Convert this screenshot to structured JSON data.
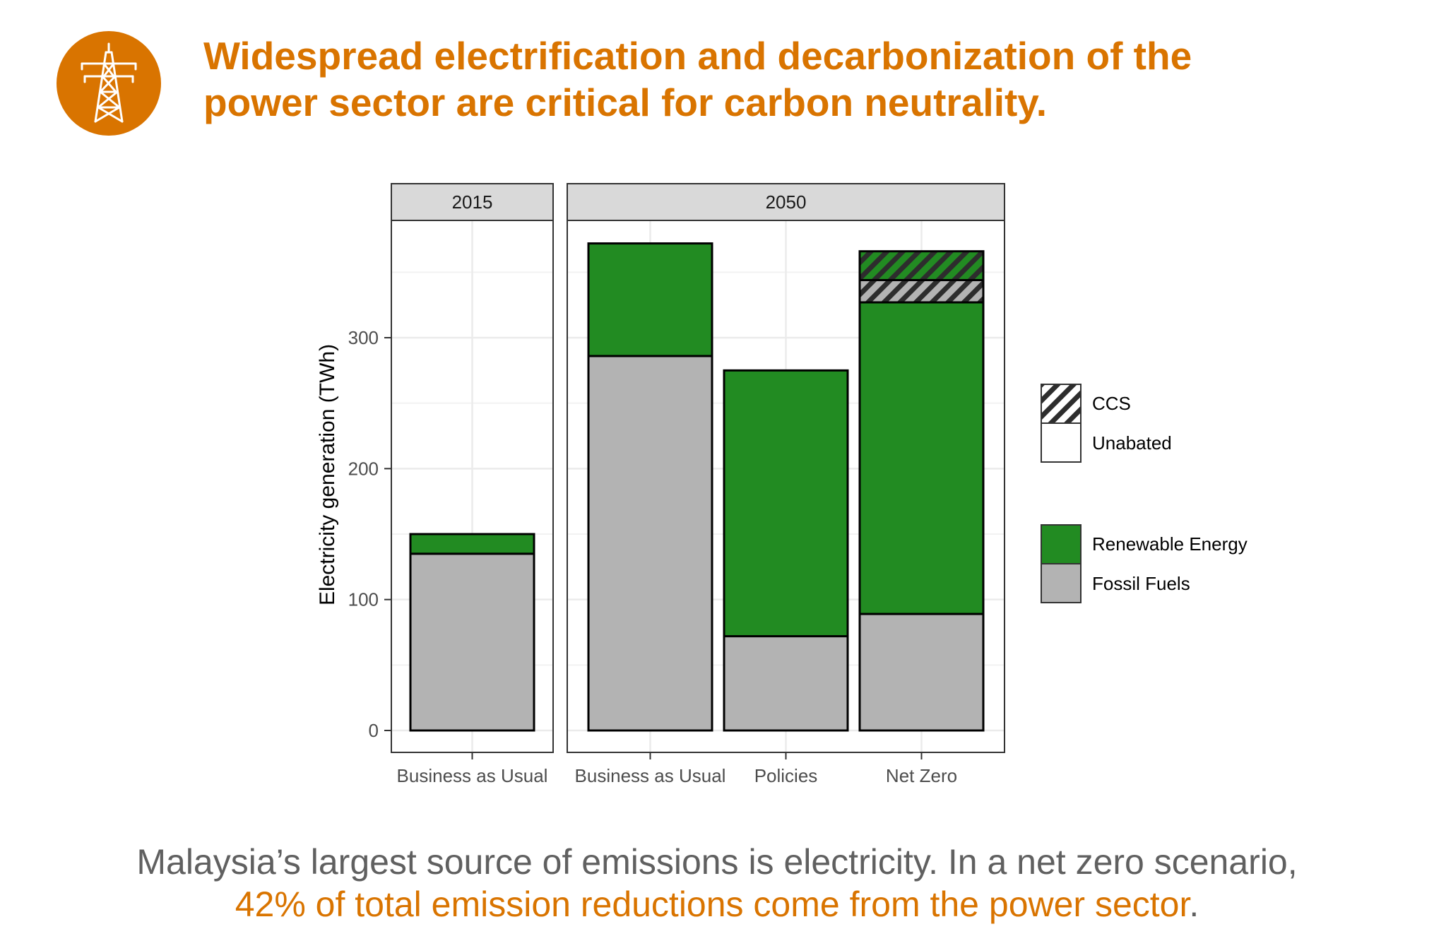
{
  "title": {
    "line1": "Widespread electrification and decarbonization of the",
    "line2": "power sector are critical for carbon neutrality."
  },
  "icon": "power-tower-icon",
  "colors": {
    "accent": "#D97400",
    "fossil": "#B3B3B3",
    "renewable": "#228B22",
    "caption_text": "#606060"
  },
  "caption": {
    "line1": "Malaysia’s largest source of emissions is electricity. In a net zero scenario,",
    "line2_highlight": "42% of total emission reductions come from the power sector",
    "line2_end": "."
  },
  "chart_data": {
    "type": "bar",
    "stacked": true,
    "ylabel": "Electricity generation (TWh)",
    "ylim": [
      0,
      390
    ],
    "yticks": [
      0,
      100,
      200,
      300
    ],
    "grid": true,
    "facets": [
      {
        "label": "2015",
        "categories": [
          "Business as Usual"
        ]
      },
      {
        "label": "2050",
        "categories": [
          "Business as Usual",
          "Policies",
          "Net Zero"
        ]
      }
    ],
    "bars": [
      {
        "facet": "2015",
        "category": "Business as Usual",
        "segments": [
          {
            "fill": "Fossil Fuels",
            "pattern": "Unabated",
            "value": 135
          },
          {
            "fill": "Renewable Energy",
            "pattern": "Unabated",
            "value": 15
          }
        ]
      },
      {
        "facet": "2050",
        "category": "Business as Usual",
        "segments": [
          {
            "fill": "Fossil Fuels",
            "pattern": "Unabated",
            "value": 286
          },
          {
            "fill": "Renewable Energy",
            "pattern": "Unabated",
            "value": 86
          }
        ]
      },
      {
        "facet": "2050",
        "category": "Policies",
        "segments": [
          {
            "fill": "Fossil Fuels",
            "pattern": "Unabated",
            "value": 72
          },
          {
            "fill": "Renewable Energy",
            "pattern": "Unabated",
            "value": 203
          }
        ]
      },
      {
        "facet": "2050",
        "category": "Net Zero",
        "segments": [
          {
            "fill": "Fossil Fuels",
            "pattern": "Unabated",
            "value": 89
          },
          {
            "fill": "Renewable Energy",
            "pattern": "Unabated",
            "value": 238
          },
          {
            "fill": "Fossil Fuels",
            "pattern": "CCS",
            "value": 17
          },
          {
            "fill": "Renewable Energy",
            "pattern": "CCS",
            "value": 22
          }
        ]
      }
    ],
    "legend": {
      "position": "right",
      "pattern": [
        "CCS",
        "Unabated"
      ],
      "fill": [
        "Renewable Energy",
        "Fossil Fuels"
      ]
    }
  }
}
